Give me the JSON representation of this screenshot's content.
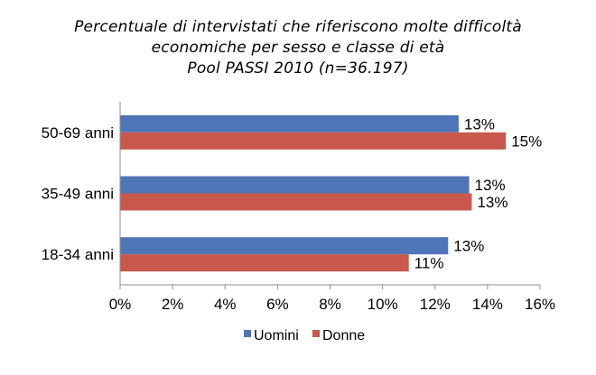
{
  "chart_data": {
    "type": "bar",
    "orientation": "horizontal",
    "title_lines": [
      "Percentuale di intervistati che riferiscono molte difficoltà",
      "economiche per sesso e classe di età",
      "Pool PASSI 2010 (n=36.197)"
    ],
    "categories": [
      "50-69 anni",
      "35-49 anni",
      "18-34 anni"
    ],
    "series": [
      {
        "name": "Uomini",
        "color": "#4f74b7",
        "values": [
          12.9,
          13.3,
          12.5
        ],
        "labels": [
          "13%",
          "13%",
          "13%"
        ]
      },
      {
        "name": "Donne",
        "color": "#c9584c",
        "values": [
          14.7,
          13.4,
          11.0
        ],
        "labels": [
          "15%",
          "13%",
          "11%"
        ]
      }
    ],
    "x_ticks": [
      "0%",
      "2%",
      "4%",
      "6%",
      "8%",
      "10%",
      "12%",
      "14%",
      "16%"
    ],
    "xlim": [
      0,
      16
    ],
    "grid": false,
    "legend_position": "bottom"
  }
}
